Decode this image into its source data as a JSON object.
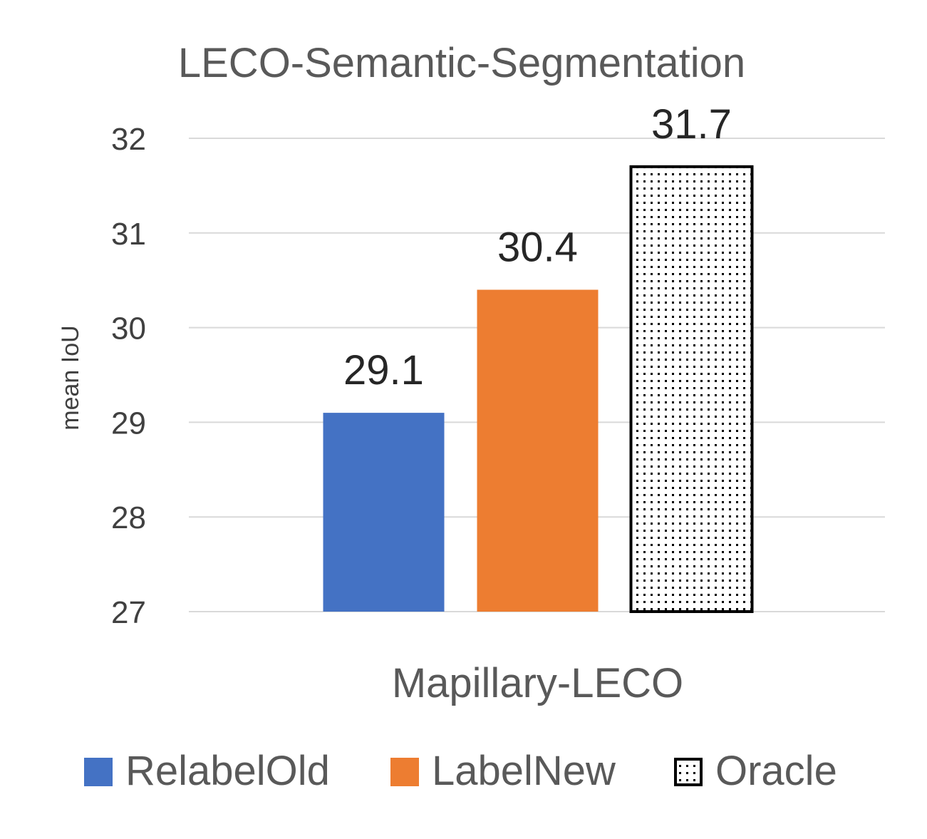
{
  "chart_data": {
    "type": "bar",
    "title": "LECO-Semantic-Segmentation",
    "ylabel": "mean IoU",
    "categories": [
      "Mapillary-LECO"
    ],
    "ylim": [
      27,
      32
    ],
    "yticks": [
      27,
      28,
      29,
      30,
      31,
      32
    ],
    "grid": true,
    "legend_position": "bottom",
    "series": [
      {
        "name": "RelabelOld",
        "values": [
          29.1
        ],
        "data_label": "29.1",
        "color": "#4472C4",
        "pattern": "solid"
      },
      {
        "name": "LabelNew",
        "values": [
          30.4
        ],
        "data_label": "30.4",
        "color": "#ED7D31",
        "pattern": "solid"
      },
      {
        "name": "Oracle",
        "values": [
          31.7
        ],
        "data_label": "31.7",
        "color": "#000000",
        "pattern": "dotted"
      }
    ]
  }
}
